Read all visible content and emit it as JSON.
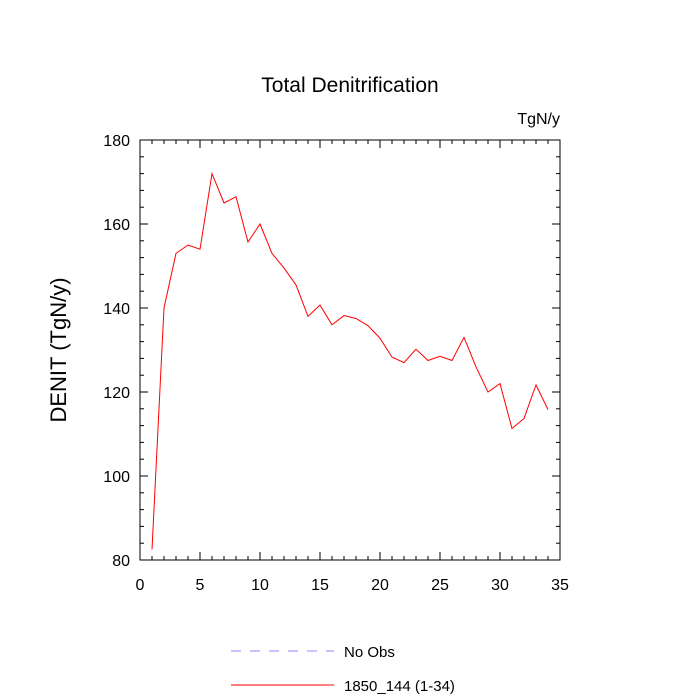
{
  "chart_data": {
    "type": "line",
    "title": "Total Denitrification",
    "units_label": "TgN/y",
    "xlabel": "",
    "ylabel": "DENIT  (TgN/y)",
    "xlim": [
      0,
      35
    ],
    "ylim": [
      80,
      180
    ],
    "xticks": [
      0,
      5,
      10,
      15,
      20,
      25,
      30,
      35
    ],
    "yticks": [
      80,
      100,
      120,
      140,
      160,
      180
    ],
    "grid": false,
    "legend_position": "bottom-center",
    "series": [
      {
        "name": "No Obs",
        "color": "#8888ff",
        "dash": "dashed",
        "x": [],
        "y": []
      },
      {
        "name": "1850_144 (1-34)",
        "color": "#ff0000",
        "dash": "solid",
        "x": [
          1,
          2,
          3,
          4,
          5,
          6,
          7,
          8,
          9,
          10,
          11,
          12,
          13,
          14,
          15,
          16,
          17,
          18,
          19,
          20,
          21,
          22,
          23,
          24,
          25,
          26,
          27,
          28,
          29,
          30,
          31,
          32,
          33,
          34
        ],
        "y": [
          82.5,
          140,
          153,
          155,
          154,
          172,
          165,
          166.5,
          155.7,
          160,
          153,
          149.5,
          145.5,
          138,
          140.7,
          136,
          138.2,
          137.5,
          135.8,
          132.8,
          128.3,
          127,
          130.2,
          127.5,
          128.5,
          127.5,
          133,
          126,
          120,
          122,
          111.3,
          113.7,
          121.7,
          115.8
        ]
      }
    ]
  }
}
